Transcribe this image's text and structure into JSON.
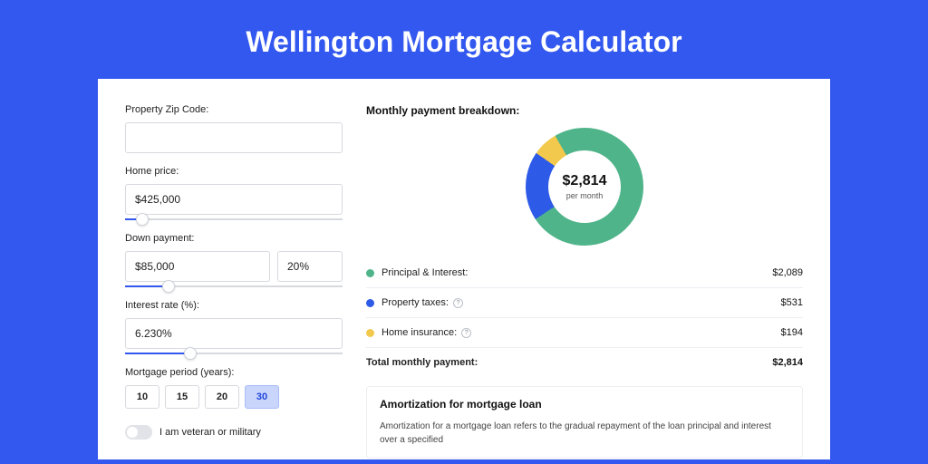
{
  "page": {
    "title": "Wellington Mortgage Calculator",
    "colors": {
      "page_bg": "#3358ef",
      "band_bg": "#2046de",
      "card_bg": "#ffffff",
      "accent": "#3358ef"
    }
  },
  "form": {
    "zip": {
      "label": "Property Zip Code:",
      "value": ""
    },
    "home_price": {
      "label": "Home price:",
      "value": "$425,000",
      "slider_pct": 8
    },
    "down": {
      "label": "Down payment:",
      "value": "$85,000",
      "pct": "20%",
      "slider_pct": 20
    },
    "rate": {
      "label": "Interest rate (%):",
      "value": "6.230%",
      "slider_pct": 30
    },
    "period": {
      "label": "Mortgage period (years):",
      "options": [
        "10",
        "15",
        "20",
        "30"
      ],
      "selected": "30"
    },
    "veteran": {
      "label": "I am veteran or military",
      "checked": false
    }
  },
  "breakdown": {
    "title": "Monthly payment breakdown:",
    "center_amount": "$2,814",
    "center_sub": "per month",
    "items": [
      {
        "key": "pi",
        "label": "Principal & Interest:",
        "value": "$2,089",
        "color": "#4fb48a",
        "pct": 74,
        "info": false
      },
      {
        "key": "tax",
        "label": "Property taxes:",
        "value": "$531",
        "color": "#2e5ae8",
        "pct": 19,
        "info": true
      },
      {
        "key": "ins",
        "label": "Home insurance:",
        "value": "$194",
        "color": "#f2c94c",
        "pct": 7,
        "info": true
      }
    ],
    "total": {
      "label": "Total monthly payment:",
      "value": "$2,814"
    }
  },
  "amort": {
    "title": "Amortization for mortgage loan",
    "body": "Amortization for a mortgage loan refers to the gradual repayment of the loan principal and interest over a specified"
  }
}
